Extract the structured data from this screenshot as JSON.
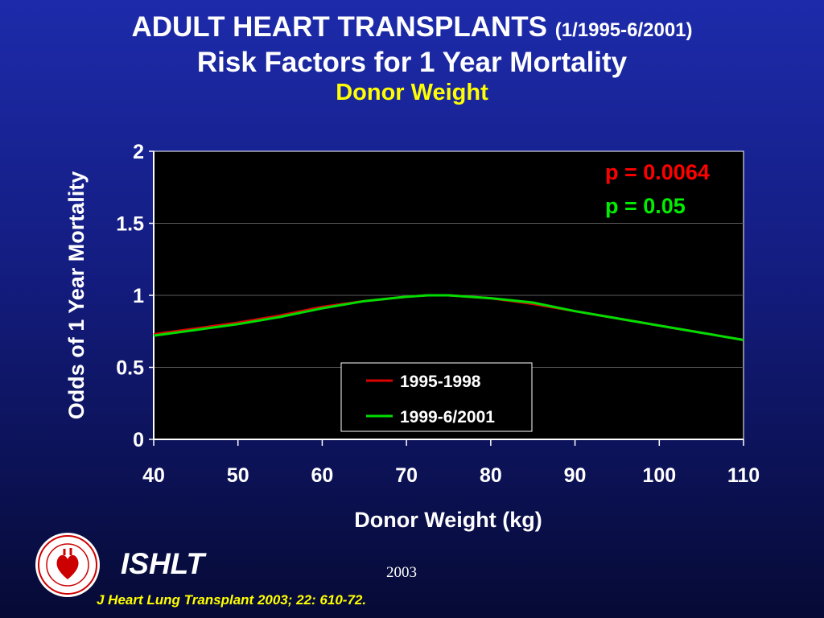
{
  "slide": {
    "title_main": "ADULT HEART TRANSPLANTS",
    "title_range": "(1/1995-6/2001)",
    "title_sub": "Risk Factors for 1 Year Mortality",
    "title_topic": "Donor Weight",
    "footer_org": "ISHLT",
    "footer_year": "2003",
    "citation": "J Heart Lung Transplant 2003; 22: 610-72.",
    "logo_icon": "ishlt-heart-logo-icon",
    "colors": {
      "background": "#131c7e",
      "title": "#ffffff",
      "topic": "#ffff00",
      "citation": "#ffff00"
    }
  },
  "chart_data": {
    "type": "line",
    "xlabel": "Donor Weight (kg)",
    "ylabel": "Odds of 1 Year Mortality",
    "xlim": [
      40,
      110
    ],
    "ylim": [
      0,
      2
    ],
    "x_ticks": [
      "40",
      "50",
      "60",
      "70",
      "80",
      "90",
      "100",
      "110"
    ],
    "y_ticks": [
      "0",
      "0.5",
      "1",
      "1.5",
      "2"
    ],
    "grid": "horizontal",
    "plot_background": "#000000",
    "legend_position": "bottom-center",
    "series": [
      {
        "name": "1995-1998",
        "color": "#dd0000",
        "x": [
          40,
          45,
          50,
          55,
          60,
          65,
          70,
          72.5,
          75,
          80,
          85,
          90,
          95,
          100,
          105,
          110
        ],
        "y": [
          0.73,
          0.77,
          0.81,
          0.86,
          0.92,
          0.96,
          0.99,
          1.0,
          1.0,
          0.98,
          0.94,
          0.89,
          0.84,
          0.79,
          0.74,
          0.69
        ]
      },
      {
        "name": "1999-6/2001",
        "color": "#00dd00",
        "x": [
          40,
          45,
          50,
          55,
          60,
          65,
          70,
          72.5,
          75,
          80,
          85,
          90,
          95,
          100,
          105,
          110
        ],
        "y": [
          0.72,
          0.76,
          0.8,
          0.85,
          0.91,
          0.96,
          0.99,
          1.0,
          1.0,
          0.98,
          0.95,
          0.89,
          0.84,
          0.79,
          0.74,
          0.69
        ]
      }
    ],
    "annotations": [
      {
        "text": "p = 0.0064",
        "color": "#ff0000"
      },
      {
        "text": "p = 0.05",
        "color": "#00ee00"
      }
    ]
  }
}
